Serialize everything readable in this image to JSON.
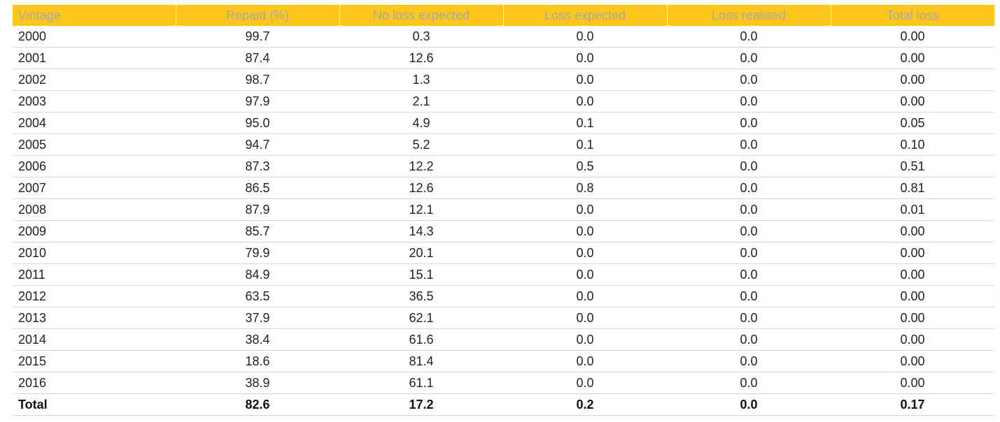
{
  "table": {
    "headers": [
      "Vintage",
      "Repaid (%)",
      "No loss expected",
      "Loss expected",
      "Loss realised",
      "Total loss"
    ],
    "rows": [
      [
        "2000",
        "99.7",
        "0.3",
        "0.0",
        "0.0",
        "0.00"
      ],
      [
        "2001",
        "87.4",
        "12.6",
        "0.0",
        "0.0",
        "0.00"
      ],
      [
        "2002",
        "98.7",
        "1.3",
        "0.0",
        "0.0",
        "0.00"
      ],
      [
        "2003",
        "97.9",
        "2.1",
        "0.0",
        "0.0",
        "0.00"
      ],
      [
        "2004",
        "95.0",
        "4.9",
        "0.1",
        "0.0",
        "0.05"
      ],
      [
        "2005",
        "94.7",
        "5.2",
        "0.1",
        "0.0",
        "0.10"
      ],
      [
        "2006",
        "87.3",
        "12.2",
        "0.5",
        "0.0",
        "0.51"
      ],
      [
        "2007",
        "86.5",
        "12.6",
        "0.8",
        "0.0",
        "0.81"
      ],
      [
        "2008",
        "87.9",
        "12.1",
        "0.0",
        "0.0",
        "0.01"
      ],
      [
        "2009",
        "85.7",
        "14.3",
        "0.0",
        "0.0",
        "0.00"
      ],
      [
        "2010",
        "79.9",
        "20.1",
        "0.0",
        "0.0",
        "0.00"
      ],
      [
        "2011",
        "84.9",
        "15.1",
        "0.0",
        "0.0",
        "0.00"
      ],
      [
        "2012",
        "63.5",
        "36.5",
        "0.0",
        "0.0",
        "0.00"
      ],
      [
        "2013",
        "37.9",
        "62.1",
        "0.0",
        "0.0",
        "0.00"
      ],
      [
        "2014",
        "38.4",
        "61.6",
        "0.0",
        "0.0",
        "0.00"
      ],
      [
        "2015",
        "18.6",
        "81.4",
        "0.0",
        "0.0",
        "0.00"
      ],
      [
        "2016",
        "38.9",
        "61.1",
        "0.0",
        "0.0",
        "0.00"
      ]
    ],
    "total": [
      "Total",
      "82.6",
      "17.2",
      "0.2",
      "0.0",
      "0.17"
    ]
  },
  "colors": {
    "header_background": "#fcc71a",
    "header_text": "#a9a9a9",
    "row_divider": "#d8d8d8"
  }
}
